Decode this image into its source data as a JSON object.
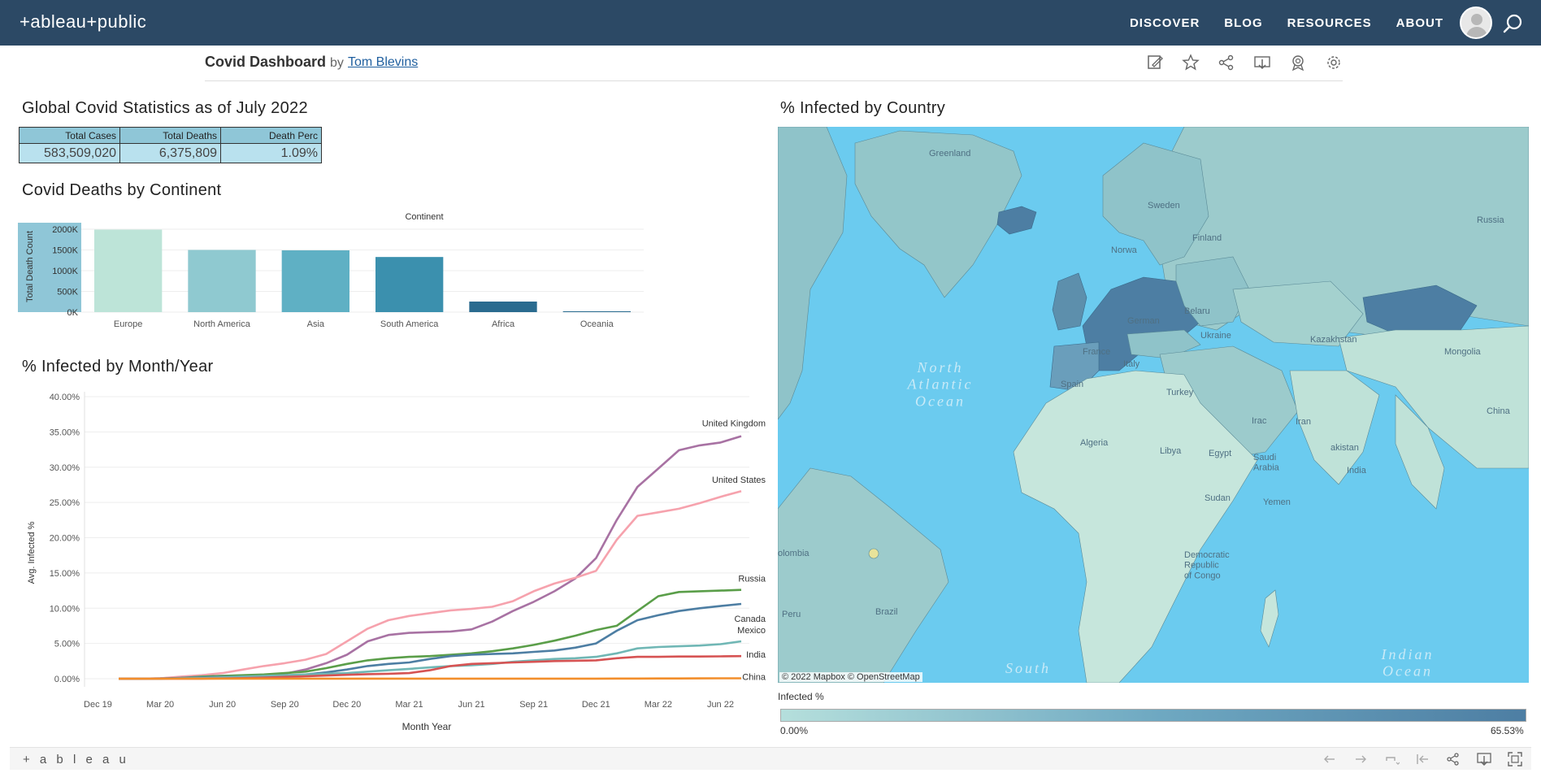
{
  "header": {
    "logo": "+ableau+public",
    "nav": [
      "DISCOVER",
      "BLOG",
      "RESOURCES",
      "ABOUT"
    ]
  },
  "dashboard": {
    "title": "Covid Dashboard",
    "by": "by",
    "author": "Tom Blevins"
  },
  "stats": {
    "title": "Global Covid Statistics as of July 2022",
    "headers": [
      "Total Cases",
      "Total Deaths",
      "Death Perc"
    ],
    "values": [
      "583,509,020",
      "6,375,809",
      "1.09%"
    ]
  },
  "continent_chart": {
    "section_title": "Covid Deaths by Continent",
    "top_label": "Continent",
    "ylabel": "Total Death Count",
    "yticks": [
      "2000K",
      "1500K",
      "1000K",
      "500K",
      "0K"
    ]
  },
  "line_chart": {
    "section_title": "% Infected by Month/Year",
    "ylabel": "Avg. Infected %",
    "xlabel": "Month Year",
    "yticks": [
      "40.00%",
      "35.00%",
      "30.00%",
      "25.00%",
      "20.00%",
      "15.00%",
      "10.00%",
      "5.00%",
      "0.00%"
    ],
    "xticks": [
      "Dec 19",
      "Mar 20",
      "Jun 20",
      "Sep 20",
      "Dec 20",
      "Mar 21",
      "Jun 21",
      "Sep 21",
      "Dec 21",
      "Mar 22",
      "Jun 22"
    ]
  },
  "map": {
    "section_title": "% Infected by Country",
    "labels": {
      "greenland": "Greenland",
      "sweden": "Sweden",
      "finland": "Finland",
      "norway": "Norwa",
      "russia": "Russia",
      "belarus": "Belaru",
      "ukraine": "Ukraine",
      "kazakhstan": "Kazakhstan",
      "mongolia": "Mongolia",
      "germany": "German",
      "france": "France",
      "italy": "Italy",
      "spain": "Spain",
      "turkey": "Turkey",
      "iraq": "Irac",
      "iran": "Iran",
      "china": "China",
      "pakistan": "akistan",
      "india": "India",
      "algeria": "Algeria",
      "libya": "Libya",
      "egypt": "Egypt",
      "saudi": "Saudi\nArabia",
      "yemen": "Yemen",
      "sudan": "Sudan",
      "drc": "Democratic\nRepublic\nof Congo",
      "colombia": "olombia",
      "peru": "Peru",
      "brazil": "Brazil"
    },
    "oceans": {
      "north_atlantic": "North\nAtlantic\nOcean",
      "south": "South",
      "indian": "Indian\nOcean"
    },
    "attribution": "© 2022 Mapbox © OpenStreetMap",
    "legend_title": "Infected %",
    "legend_min": "0.00%",
    "legend_max": "65.53%"
  },
  "footer": {
    "logo": "+ a b l e a u"
  },
  "colors": {
    "header_bg": "#2c4965",
    "ocean": "#6bcbef",
    "land_light": "#c3e4dc",
    "land_mid": "#8fc3c9",
    "land_dark": "#4d7ea3"
  },
  "chart_data": [
    {
      "type": "bar",
      "title": "Covid Deaths by Continent",
      "xlabel": "Continent",
      "ylabel": "Total Death Count",
      "ylim": [
        0,
        2000000
      ],
      "categories": [
        "Europe",
        "North America",
        "Asia",
        "South America",
        "Africa",
        "Oceania"
      ],
      "values": [
        1990000,
        1500000,
        1490000,
        1330000,
        255000,
        20000
      ],
      "colors": [
        "#bde4d8",
        "#8fc9d0",
        "#5fb0c4",
        "#3b90ae",
        "#2a6b8f",
        "#2a6b8f"
      ]
    },
    {
      "type": "line",
      "title": "% Infected by Month/Year",
      "xlabel": "Month Year",
      "ylabel": "Avg. Infected %",
      "ylim": [
        0,
        40
      ],
      "x": [
        "Jan 20",
        "Feb 20",
        "Mar 20",
        "Apr 20",
        "May 20",
        "Jun 20",
        "Jul 20",
        "Aug 20",
        "Sep 20",
        "Oct 20",
        "Nov 20",
        "Dec 20",
        "Jan 21",
        "Feb 21",
        "Mar 21",
        "Apr 21",
        "May 21",
        "Jun 21",
        "Jul 21",
        "Aug 21",
        "Sep 21",
        "Oct 21",
        "Nov 21",
        "Dec 21",
        "Jan 22",
        "Feb 22",
        "Mar 22",
        "Apr 22",
        "May 22",
        "Jun 22",
        "Jul 22"
      ],
      "series": [
        {
          "name": "United Kingdom",
          "color": "#a872a3",
          "values": [
            0,
            0,
            0.05,
            0.2,
            0.35,
            0.4,
            0.45,
            0.5,
            0.7,
            1.3,
            2.2,
            3.4,
            5.3,
            6.2,
            6.5,
            6.6,
            6.7,
            7.0,
            8.1,
            9.6,
            10.9,
            12.4,
            14.2,
            17.1,
            22.5,
            27.2,
            29.8,
            32.4,
            33.1,
            33.5,
            34.4
          ]
        },
        {
          "name": "United States",
          "color": "#f6a2ad",
          "values": [
            0,
            0,
            0.05,
            0.3,
            0.5,
            0.8,
            1.3,
            1.8,
            2.2,
            2.7,
            3.5,
            5.3,
            7.1,
            8.3,
            8.9,
            9.3,
            9.7,
            9.9,
            10.2,
            11.0,
            12.4,
            13.5,
            14.3,
            15.3,
            19.7,
            23.1,
            23.6,
            24.1,
            24.9,
            25.8,
            26.6
          ]
        },
        {
          "name": "Russia",
          "color": "#5a9e49",
          "values": [
            0,
            0,
            0,
            0.1,
            0.3,
            0.4,
            0.5,
            0.6,
            0.8,
            1.0,
            1.5,
            2.1,
            2.6,
            2.9,
            3.1,
            3.2,
            3.4,
            3.6,
            3.9,
            4.3,
            4.8,
            5.4,
            6.1,
            6.9,
            7.5,
            9.6,
            11.7,
            12.3,
            12.4,
            12.5,
            12.6
          ]
        },
        {
          "name": "Canada",
          "color": "#4d7ea3",
          "values": [
            0,
            0,
            0.03,
            0.1,
            0.2,
            0.25,
            0.3,
            0.35,
            0.45,
            0.6,
            0.9,
            1.3,
            1.8,
            2.1,
            2.3,
            2.8,
            3.2,
            3.4,
            3.5,
            3.6,
            3.8,
            4.0,
            4.4,
            5.0,
            6.8,
            8.3,
            9.0,
            9.6,
            10.0,
            10.3,
            10.6
          ]
        },
        {
          "name": "Mexico",
          "color": "#70b7b5",
          "values": [
            0,
            0,
            0,
            0.05,
            0.1,
            0.2,
            0.3,
            0.4,
            0.5,
            0.6,
            0.7,
            0.8,
            1.0,
            1.2,
            1.4,
            1.6,
            1.8,
            1.9,
            2.1,
            2.4,
            2.6,
            2.8,
            2.9,
            3.1,
            3.6,
            4.3,
            4.5,
            4.6,
            4.7,
            4.9,
            5.3
          ]
        },
        {
          "name": "India",
          "color": "#d65353",
          "values": [
            0,
            0,
            0,
            0,
            0.01,
            0.03,
            0.08,
            0.15,
            0.25,
            0.35,
            0.45,
            0.55,
            0.65,
            0.7,
            0.8,
            1.2,
            1.8,
            2.1,
            2.2,
            2.3,
            2.4,
            2.5,
            2.55,
            2.6,
            2.9,
            3.1,
            3.1,
            3.15,
            3.15,
            3.17,
            3.2
          ]
        },
        {
          "name": "China",
          "color": "#f28e2b",
          "values": [
            0,
            0,
            0.01,
            0.01,
            0.01,
            0.01,
            0.01,
            0.01,
            0.01,
            0.01,
            0.01,
            0.01,
            0.01,
            0.01,
            0.01,
            0.01,
            0.01,
            0.01,
            0.01,
            0.01,
            0.01,
            0.01,
            0.01,
            0.01,
            0.02,
            0.02,
            0.03,
            0.04,
            0.05,
            0.06,
            0.06
          ]
        }
      ]
    }
  ]
}
